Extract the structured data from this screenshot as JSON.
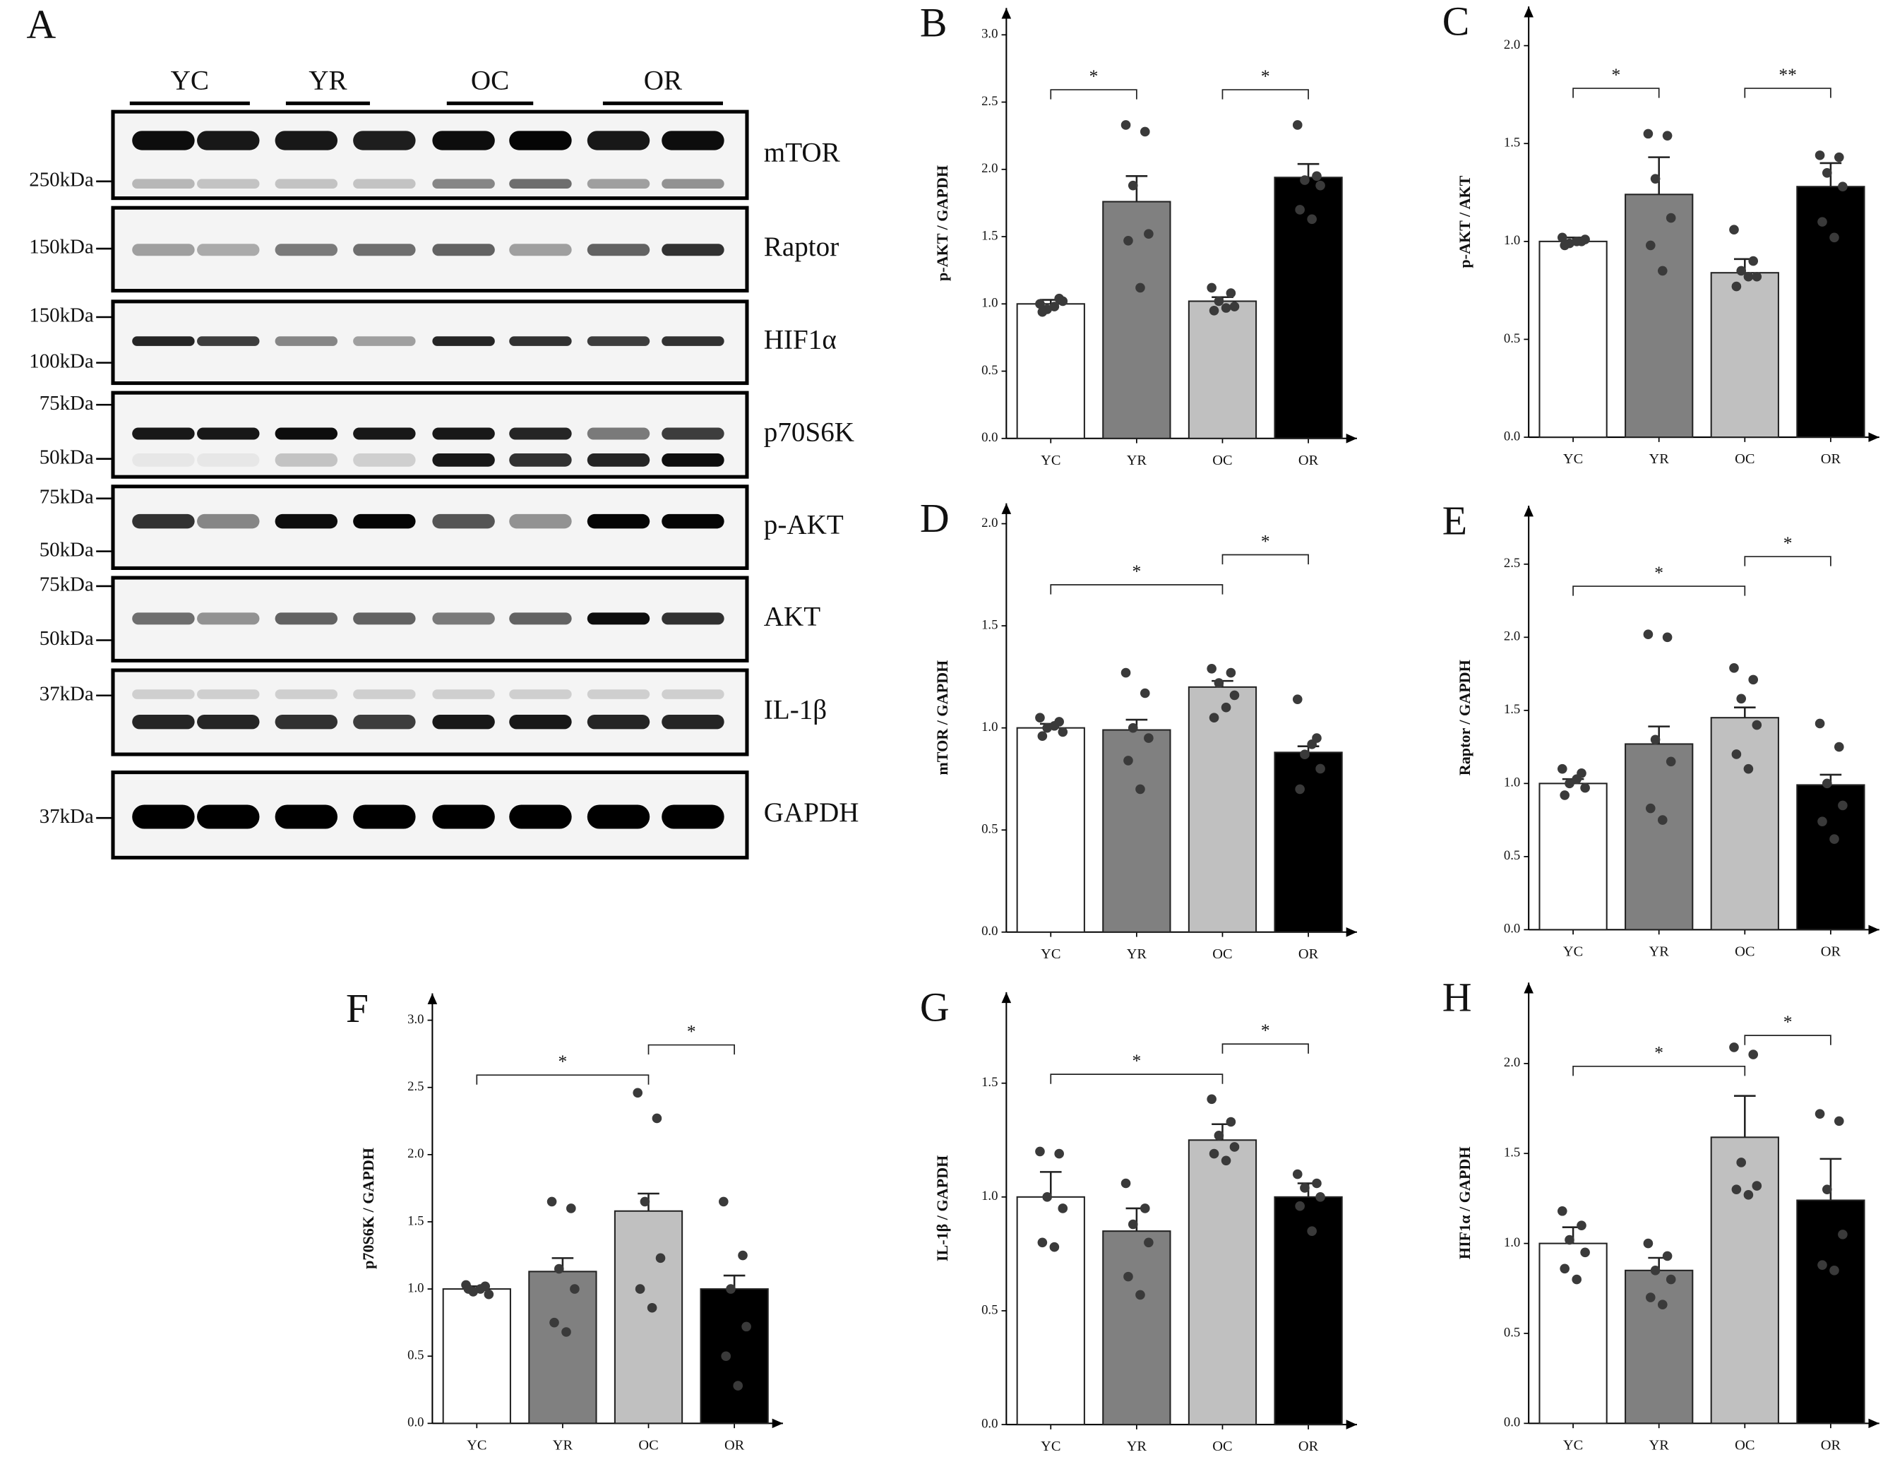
{
  "blot": {
    "panel": "A",
    "groups": [
      "YC",
      "YR",
      "OC",
      "OR"
    ],
    "rows": [
      {
        "name": "mTOR",
        "markers": [
          "250kDa"
        ]
      },
      {
        "name": "Raptor",
        "markers": [
          "150kDa"
        ]
      },
      {
        "name": "HIF1α",
        "markers": [
          "150kDa",
          "100kDa"
        ]
      },
      {
        "name": "p70S6K",
        "markers": [
          "75kDa",
          "50kDa"
        ]
      },
      {
        "name": "p-AKT",
        "markers": [
          "75kDa",
          "50kDa"
        ]
      },
      {
        "name": "AKT",
        "markers": [
          "75kDa",
          "50kDa"
        ]
      },
      {
        "name": "IL-1β",
        "markers": [
          "37kDa"
        ]
      },
      {
        "name": "GAPDH",
        "markers": [
          "37kDa"
        ]
      }
    ]
  },
  "chart_data": [
    {
      "type": "bar",
      "panel": "B",
      "ylabel": "p-AKT / GAPDH",
      "categories": [
        "YC",
        "YR",
        "OC",
        "OR"
      ],
      "colors": [
        "#ffffff",
        "#808080",
        "#c0c0c0",
        "#000000"
      ],
      "values": [
        1.0,
        1.76,
        1.02,
        1.94
      ],
      "errors": [
        0.03,
        0.19,
        0.03,
        0.1
      ],
      "points": [
        [
          1.0,
          1.04,
          0.96,
          1.02,
          0.94,
          0.98
        ],
        [
          2.33,
          2.28,
          1.88,
          1.52,
          1.47,
          1.12
        ],
        [
          1.12,
          1.08,
          1.02,
          0.98,
          0.95,
          0.97
        ],
        [
          2.33,
          1.95,
          1.92,
          1.88,
          1.7,
          1.63
        ]
      ],
      "ylim": [
        0,
        3.2
      ],
      "yticks": [
        {
          "value": 0,
          "label": "0.0"
        },
        0.5,
        {
          "value": 1,
          "label": "1.0"
        },
        1.5,
        {
          "value": 2,
          "label": "2.0"
        },
        2.5,
        {
          "value": 3,
          "label": "3.0"
        }
      ],
      "annotations": [
        {
          "from": 0,
          "to": 1,
          "label": "*"
        },
        {
          "from": 2,
          "to": 3,
          "label": "*"
        }
      ]
    },
    {
      "type": "bar",
      "panel": "C",
      "ylabel": "p-AKT / AKT",
      "categories": [
        "YC",
        "YR",
        "OC",
        "OR"
      ],
      "colors": [
        "#ffffff",
        "#808080",
        "#c0c0c0",
        "#000000"
      ],
      "values": [
        1.0,
        1.24,
        0.84,
        1.28
      ],
      "errors": [
        0.02,
        0.19,
        0.07,
        0.12
      ],
      "points": [
        [
          1.02,
          1.0,
          0.99,
          1.01,
          0.98,
          1.0
        ],
        [
          1.55,
          1.54,
          1.32,
          1.12,
          0.98,
          0.85
        ],
        [
          1.06,
          0.9,
          0.85,
          0.82,
          0.77,
          0.82
        ],
        [
          1.44,
          1.43,
          1.35,
          1.28,
          1.1,
          1.02
        ]
      ],
      "ylim": [
        0,
        2.2
      ],
      "yticks": [
        {
          "value": 0,
          "label": "0.0"
        },
        0.5,
        {
          "value": 1,
          "label": "1.0"
        },
        1.5,
        {
          "value": 2,
          "label": "2.0"
        }
      ],
      "annotations": [
        {
          "from": 0,
          "to": 1,
          "label": "*"
        },
        {
          "from": 2,
          "to": 3,
          "label": "**"
        }
      ]
    },
    {
      "type": "bar",
      "panel": "D",
      "ylabel": "mTOR / GAPDH",
      "categories": [
        "YC",
        "YR",
        "OC",
        "OR"
      ],
      "colors": [
        "#ffffff",
        "#808080",
        "#c0c0c0",
        "#000000"
      ],
      "values": [
        1.0,
        0.99,
        1.2,
        0.88
      ],
      "errors": [
        0.02,
        0.05,
        0.03,
        0.03
      ],
      "points": [
        [
          1.05,
          1.03,
          1.0,
          0.98,
          0.96,
          1.01
        ],
        [
          1.27,
          1.17,
          1.0,
          0.95,
          0.84,
          0.7
        ],
        [
          1.29,
          1.27,
          1.22,
          1.16,
          1.05,
          1.1
        ],
        [
          1.14,
          0.95,
          0.87,
          0.8,
          0.7,
          0.92
        ]
      ],
      "ylim": [
        0,
        2.1
      ],
      "yticks": [
        {
          "value": 0,
          "label": "0.0"
        },
        0.5,
        {
          "value": 1,
          "label": "1.0"
        },
        1.5,
        {
          "value": 2,
          "label": "2.0"
        }
      ],
      "annotations": [
        {
          "from": 0,
          "to": 2,
          "label": "*"
        },
        {
          "from": 2,
          "to": 3,
          "label": "*"
        }
      ]
    },
    {
      "type": "bar",
      "panel": "E",
      "ylabel": "Raptor / GAPDH",
      "categories": [
        "YC",
        "YR",
        "OC",
        "OR"
      ],
      "colors": [
        "#ffffff",
        "#808080",
        "#c0c0c0",
        "#000000"
      ],
      "values": [
        1.0,
        1.27,
        1.45,
        0.99
      ],
      "errors": [
        0.03,
        0.12,
        0.07,
        0.07
      ],
      "points": [
        [
          1.1,
          1.07,
          1.0,
          0.97,
          0.92,
          1.03
        ],
        [
          2.02,
          2.0,
          1.3,
          1.15,
          0.83,
          0.75
        ],
        [
          1.79,
          1.71,
          1.58,
          1.4,
          1.2,
          1.1
        ],
        [
          1.41,
          1.25,
          1.0,
          0.85,
          0.74,
          0.62
        ]
      ],
      "ylim": [
        0,
        2.9
      ],
      "yticks": [
        {
          "value": 0,
          "label": "0.0"
        },
        0.5,
        {
          "value": 1,
          "label": "1.0"
        },
        1.5,
        {
          "value": 2,
          "label": "2.0"
        },
        2.5
      ],
      "annotations": [
        {
          "from": 0,
          "to": 2,
          "label": "*"
        },
        {
          "from": 2,
          "to": 3,
          "label": "*"
        }
      ]
    },
    {
      "type": "bar",
      "panel": "F",
      "ylabel": "p70S6K / GAPDH",
      "categories": [
        "YC",
        "YR",
        "OC",
        "OR"
      ],
      "colors": [
        "#ffffff",
        "#808080",
        "#c0c0c0",
        "#000000"
      ],
      "values": [
        1.0,
        1.13,
        1.58,
        1.0
      ],
      "errors": [
        0.02,
        0.1,
        0.13,
        0.1
      ],
      "points": [
        [
          1.03,
          1.02,
          0.98,
          0.96,
          1.0,
          1.0
        ],
        [
          1.65,
          1.6,
          1.15,
          1.0,
          0.75,
          0.68
        ],
        [
          2.46,
          2.27,
          1.65,
          1.23,
          1.0,
          0.86
        ],
        [
          1.65,
          1.25,
          1.0,
          0.72,
          0.5,
          0.28
        ]
      ],
      "ylim": [
        0,
        3.2
      ],
      "yticks": [
        {
          "value": 0,
          "label": "0.0"
        },
        0.5,
        {
          "value": 1,
          "label": "1.0"
        },
        1.5,
        {
          "value": 2,
          "label": "2.0"
        },
        2.5,
        {
          "value": 3,
          "label": "3.0"
        }
      ],
      "annotations": [
        {
          "from": 0,
          "to": 2,
          "label": "*"
        },
        {
          "from": 2,
          "to": 3,
          "label": "*"
        }
      ]
    },
    {
      "type": "bar",
      "panel": "G",
      "ylabel": "IL-1β / GAPDH",
      "categories": [
        "YC",
        "YR",
        "OC",
        "OR"
      ],
      "colors": [
        "#ffffff",
        "#808080",
        "#c0c0c0",
        "#000000"
      ],
      "values": [
        1.0,
        0.85,
        1.25,
        1.0
      ],
      "errors": [
        0.11,
        0.1,
        0.07,
        0.06
      ],
      "points": [
        [
          1.2,
          1.19,
          1.0,
          0.95,
          0.8,
          0.78
        ],
        [
          1.06,
          0.95,
          0.88,
          0.8,
          0.65,
          0.57
        ],
        [
          1.43,
          1.33,
          1.27,
          1.22,
          1.19,
          1.16
        ],
        [
          1.1,
          1.06,
          1.04,
          1.0,
          0.96,
          0.85
        ]
      ],
      "ylim": [
        0,
        1.9
      ],
      "yticks": [
        {
          "value": 0,
          "label": "0.0"
        },
        0.5,
        {
          "value": 1,
          "label": "1.0"
        },
        1.5
      ],
      "annotations": [
        {
          "from": 0,
          "to": 2,
          "label": "*"
        },
        {
          "from": 2,
          "to": 3,
          "label": "*"
        }
      ]
    },
    {
      "type": "bar",
      "panel": "H",
      "ylabel": "HIF1α / GAPDH",
      "categories": [
        "YC",
        "YR",
        "OC",
        "OR"
      ],
      "colors": [
        "#ffffff",
        "#808080",
        "#c0c0c0",
        "#000000"
      ],
      "values": [
        1.0,
        0.85,
        1.59,
        1.24
      ],
      "errors": [
        0.09,
        0.07,
        0.23,
        0.23
      ],
      "points": [
        [
          1.18,
          1.1,
          1.02,
          0.95,
          0.86,
          0.8
        ],
        [
          1.0,
          0.93,
          0.85,
          0.8,
          0.7,
          0.66
        ],
        [
          2.09,
          2.05,
          1.45,
          1.32,
          1.3,
          1.27
        ],
        [
          1.72,
          1.68,
          1.3,
          1.05,
          0.88,
          0.85
        ]
      ],
      "ylim": [
        0,
        2.45
      ],
      "yticks": [
        {
          "value": 0,
          "label": "0.0"
        },
        0.5,
        {
          "value": 1,
          "label": "1.0"
        },
        1.5,
        {
          "value": 2,
          "label": "2.0"
        }
      ],
      "annotations": [
        {
          "from": 0,
          "to": 2,
          "label": "*"
        },
        {
          "from": 2,
          "to": 3,
          "label": "*"
        }
      ]
    }
  ]
}
